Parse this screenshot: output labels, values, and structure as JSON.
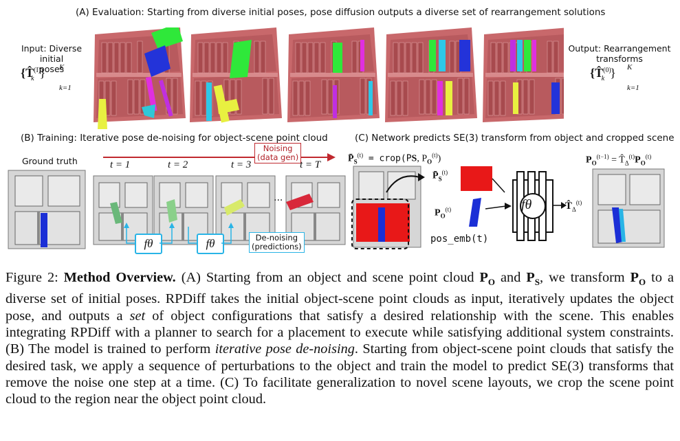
{
  "panel_a": {
    "heading": "(A)     Evaluation: Starting from diverse initial poses, pose diffusion outputs a diverse set of rearrangement solutions",
    "input_label_line1": "Input: Diverse initial",
    "input_label_line2": "poses",
    "input_math_left": "{T̂",
    "input_math_sup": "(I)",
    "input_math_sub": "k",
    "input_math_close": "}",
    "input_math_upper": "K",
    "input_math_lower": "k=1",
    "output_label_line1": "Output: Rearrangement",
    "output_label_line2": "transforms",
    "output_math_left": "{T̂",
    "output_math_sup": "(0)",
    "output_math_sub": "k",
    "output_math_close": "}",
    "output_math_upper": "K",
    "output_math_lower": "k=1"
  },
  "panel_b": {
    "heading": "(B)   Training: Iterative pose de-noising for object-scene point cloud",
    "ground_truth": "Ground truth",
    "t1": "t = 1",
    "t2": "t = 2",
    "t3": "t = 3",
    "tT": "t = T",
    "ellipsis": "...",
    "noising_line1": "Noising",
    "noising_line2": "(data gen)",
    "denoising_line1": "De-noising",
    "denoising_line2": "(predictions)",
    "f_theta": "fθ"
  },
  "panel_c": {
    "heading": "(C)   Network predicts SE(3) transform from object and cropped scene",
    "crop_eq": "P̄S(t) = crop(PS, PO(t))",
    "crop_lhs": "P̄",
    "crop_eq_rest": " = crop(P",
    "crop_s": "S",
    "crop_comma": ", P",
    "crop_o": "O",
    "crop_sup": "(t)",
    "crop_end": ")",
    "ps_bar": "P̄",
    "ps_sub": "S",
    "ps_sup": "(t)",
    "po": "P",
    "po_sub": "O",
    "po_sup": "(t)",
    "pos_emb": "pos_emb(t)",
    "f_theta": "fθ",
    "t_delta": "T̂",
    "t_delta_sub": "Δ",
    "t_delta_sup": "(t)",
    "result_lhs": "P",
    "result_lhs_sub": "O",
    "result_lhs_sup": "(t−1)",
    "result_eq": " = T̂",
    "result_rhs_sub": "Δ",
    "result_rhs_sup": "(t)",
    "result_po": "P",
    "result_po_sub": "O",
    "result_po_sup": "(t)"
  },
  "caption": {
    "fig": "Figure 2: ",
    "title": "Method Overview.",
    "p1": " (A) Starting from an object and scene point cloud ",
    "po": "P",
    "po_sub": "O",
    "and": " and ",
    "ps": "P",
    "ps_sub": "S",
    "p2": ", we transform ",
    "po2": "P",
    "po2_sub": "O",
    "p3": " to a diverse set of initial poses. RPDiff takes the initial object-scene point clouds as input, iteratively updates the object pose, and outputs a ",
    "set": "set",
    "p4": " of object configurations that satisfy a desired relationship with the scene. This enables integrating RPDiff with a planner to search for a placement to execute while satisfying additional system constraints. (B) The model is trained to perform ",
    "ipd": "iterative pose de-noising",
    "p5": ". Starting from object-scene point clouds that satisfy the desired task, we apply a sequence of perturbations to the object and train the model to predict SE(3) transforms that remove the noise one step at a time. (C) To facilitate generalization to novel scene layouts, we crop the scene point cloud to the region near the object point cloud."
  },
  "colors": {
    "shelf": "#c8686b",
    "noise_red": "#c0282e",
    "denoise_blue": "#29b4e6",
    "object_blue": "#1b2fd6",
    "point_red": "#e81818"
  }
}
